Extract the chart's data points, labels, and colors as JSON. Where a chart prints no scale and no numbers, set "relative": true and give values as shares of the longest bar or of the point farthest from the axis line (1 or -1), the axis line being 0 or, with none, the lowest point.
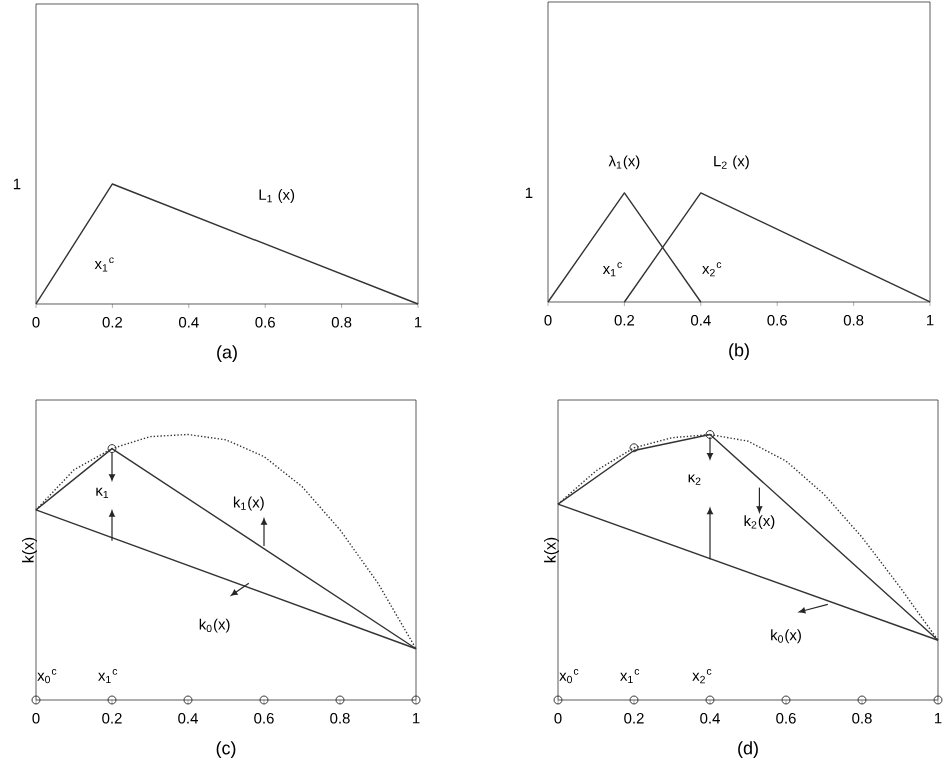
{
  "chart_data": [
    {
      "type": "line",
      "xlabel": "(a)",
      "relative": true,
      "xlim": [
        0,
        1
      ],
      "xticks": [
        0,
        0.2,
        0.4,
        0.6,
        0.8,
        1
      ],
      "series": [
        {
          "color": "#333333",
          "line_style": "solid",
          "marker": "none",
          "x": [
            0,
            0.2,
            1
          ],
          "values": [
            0,
            1,
            0
          ]
        }
      ],
      "annotations": [
        "1",
        "L$_{1}$ (x)",
        "x$_{1}$$^{c}$"
      ]
    },
    {
      "type": "line",
      "xlabel": "(b)",
      "relative": true,
      "xlim": [
        0,
        1
      ],
      "xticks": [
        0,
        0.2,
        0.4,
        0.6,
        0.8,
        1
      ],
      "series": [
        {
          "color": "#333333",
          "line_style": "solid",
          "marker": "none",
          "x": [
            0,
            0.2,
            0.4
          ],
          "values": [
            0,
            1,
            0
          ]
        },
        {
          "color": "#333333",
          "line_style": "solid",
          "marker": "none",
          "x": [
            0.2,
            0.4,
            1
          ],
          "values": [
            0,
            1,
            0
          ]
        }
      ],
      "annotations": [
        "1",
        "λ$_{1}$(x)",
        "L$_{2}$ (x)",
        "x$_{1}$$^{c}$",
        "x$_{2}$$^{c}$"
      ]
    },
    {
      "type": "line",
      "xlabel": "(c)",
      "ylabel": "k(x)",
      "relative": true,
      "xlim": [
        0,
        1
      ],
      "xticks": [
        0,
        0.2,
        0.4,
        0.6,
        0.8,
        1
      ],
      "series": [
        {
          "color": "#333333",
          "line_style": "dotted",
          "marker": "none",
          "x": [
            0,
            0.1,
            0.2,
            0.3,
            0.4,
            0.5,
            0.6,
            0.7,
            0.8,
            0.9,
            1
          ],
          "values": [
            0.716,
            0.867,
            0.947,
            0.992,
            1,
            0.98,
            0.917,
            0.804,
            0.641,
            0.44,
            0.193
          ]
        },
        {
          "color": "#333333",
          "line_style": "solid",
          "marker": "none",
          "x": [
            0,
            1
          ],
          "values": [
            0.716,
            0.193
          ]
        },
        {
          "color": "#333333",
          "line_style": "solid",
          "marker": "none",
          "x": [
            0,
            0.2,
            1
          ],
          "values": [
            0.716,
            0.947,
            0.193
          ]
        },
        {
          "type": "scatter",
          "color": "#333333",
          "marker": "circle",
          "x": [
            0.2
          ],
          "values": [
            0.947
          ]
        },
        {
          "type": "scatter",
          "color": "#333333",
          "marker": "circle",
          "x": [
            0,
            0.2,
            0.4,
            0.6,
            0.8,
            1
          ],
          "values": [
            0,
            0,
            0,
            0,
            0,
            0
          ]
        }
      ],
      "annotations": [
        "κ$_{1}$",
        "k$_{1}$(x)",
        "k$_{0}$(x)",
        "x$_{0}$$^{c}$",
        "x$_{1}$$^{c}$"
      ]
    },
    {
      "type": "line",
      "xlabel": "(d)",
      "ylabel": "k(x)",
      "relative": true,
      "xlim": [
        0,
        1
      ],
      "xticks": [
        0,
        0.2,
        0.4,
        0.6,
        0.8,
        1
      ],
      "series": [
        {
          "color": "#333333",
          "line_style": "dotted",
          "marker": "none",
          "x": [
            0,
            0.1,
            0.2,
            0.3,
            0.4,
            0.5,
            0.6,
            0.7,
            0.8,
            0.9,
            1
          ],
          "values": [
            0.738,
            0.863,
            0.95,
            0.988,
            1,
            0.975,
            0.9,
            0.775,
            0.613,
            0.425,
            0.225
          ]
        },
        {
          "color": "#333333",
          "line_style": "solid",
          "marker": "none",
          "x": [
            0,
            1
          ],
          "values": [
            0.738,
            0.225
          ]
        },
        {
          "color": "#333333",
          "line_style": "solid",
          "marker": "none",
          "x": [
            0,
            0.2,
            0.4,
            1
          ],
          "values": [
            0.738,
            0.94,
            1,
            0.225
          ]
        },
        {
          "type": "scatter",
          "color": "#333333",
          "marker": "circle",
          "x": [
            0.2,
            0.4
          ],
          "values": [
            0.95,
            1
          ]
        },
        {
          "type": "scatter",
          "color": "#333333",
          "marker": "circle",
          "x": [
            0,
            0.2,
            0.4,
            0.6,
            0.8,
            1
          ],
          "values": [
            0,
            0,
            0,
            0,
            0,
            0
          ]
        }
      ],
      "annotations": [
        "κ$_{2}$",
        "k$_{2}$(x)",
        "k$_{0}$(x)",
        "x$_{0}$$^{c}$",
        "x$_{1}$$^{c}$",
        "x$_{2}$$^{c}$"
      ]
    }
  ]
}
